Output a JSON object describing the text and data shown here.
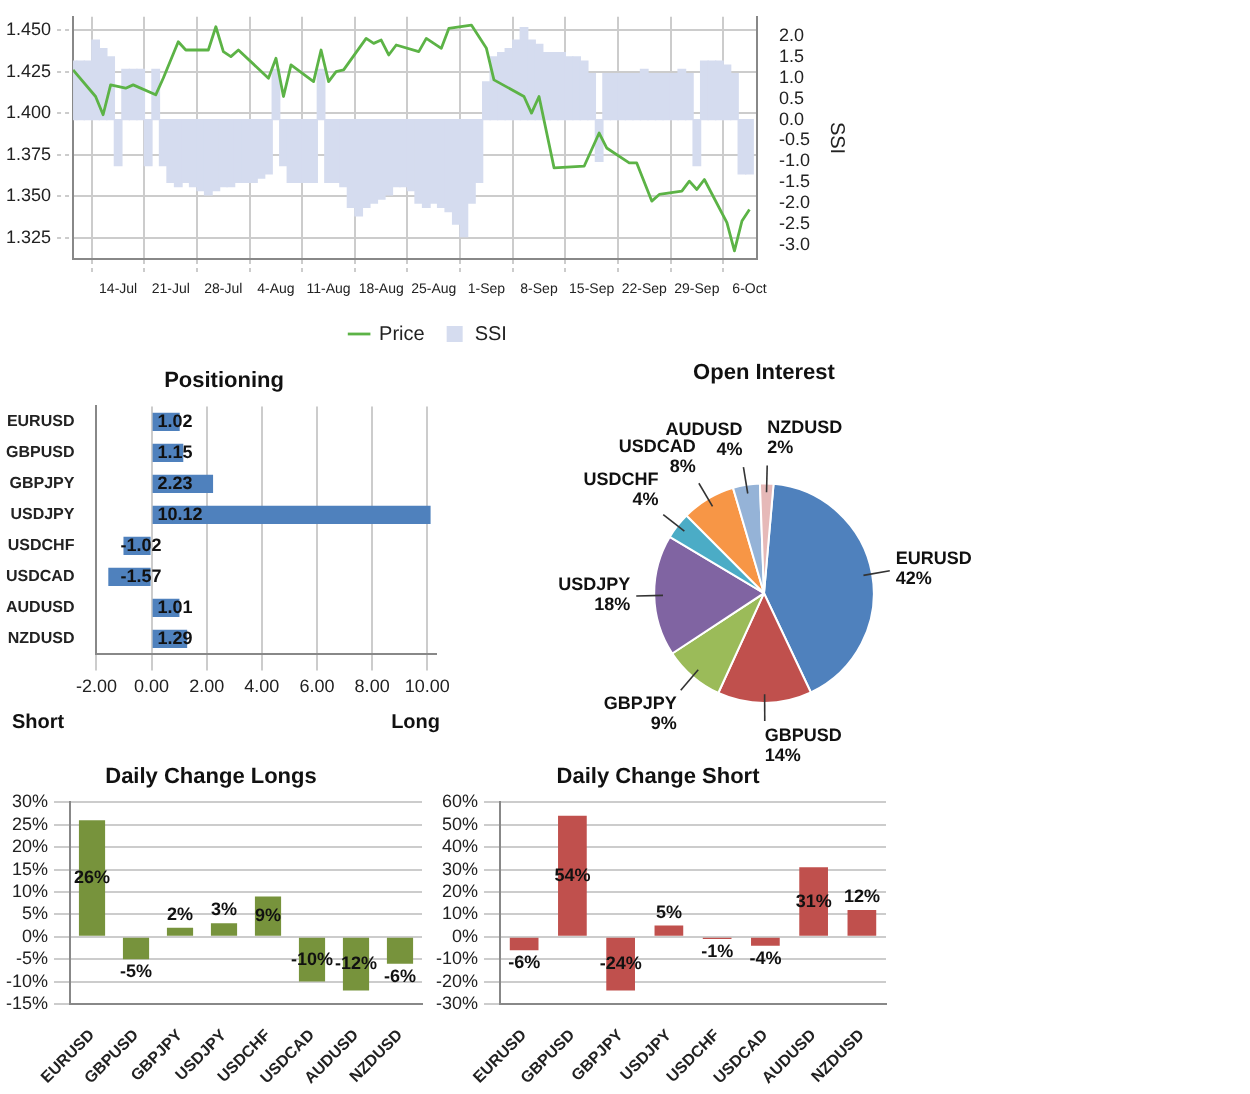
{
  "chart_data": [
    {
      "type": "line",
      "legend": "bottom",
      "grid": true,
      "y2label": "SSI",
      "xlim": [
        "--07-08",
        "--10-07"
      ],
      "xticks": [
        {
          "value": "--07-14",
          "label": "14-Jul"
        },
        {
          "value": "--07-21",
          "label": "21-Jul"
        },
        {
          "value": "--07-28",
          "label": "28-Jul"
        },
        {
          "value": "--08-04",
          "label": "4-Aug"
        },
        {
          "value": "--08-11",
          "label": "11-Aug"
        },
        {
          "value": "--08-18",
          "label": "18-Aug"
        },
        {
          "value": "--08-25",
          "label": "25-Aug"
        },
        {
          "value": "--09-01",
          "label": "1-Sep"
        },
        {
          "value": "--09-08",
          "label": "8-Sep"
        },
        {
          "value": "--09-15",
          "label": "15-Sep"
        },
        {
          "value": "--09-22",
          "label": "22-Sep"
        },
        {
          "value": "--09-29",
          "label": "29-Sep"
        },
        {
          "value": "--10-06",
          "label": "6-Oct"
        }
      ],
      "ylim": [
        1.312,
        1.458
      ],
      "yticks": [
        {
          "value": 1.325,
          "label": "1.325"
        },
        {
          "value": 1.35,
          "label": "1.350"
        },
        {
          "value": 1.375,
          "label": "1.375"
        },
        {
          "value": 1.4,
          "label": "1.400"
        },
        {
          "value": 1.425,
          "label": "1.425"
        },
        {
          "value": 1.45,
          "label": "1.450"
        }
      ],
      "y2lim": [
        -3.34,
        2.46
      ],
      "y2ticks": [
        {
          "value": -3,
          "label": "-3.0"
        },
        -2.5,
        {
          "value": -2,
          "label": "-2.0"
        },
        -1.5,
        {
          "value": -1,
          "label": "-1.0"
        },
        -0.5,
        {
          "value": 0,
          "label": "0.0"
        },
        0.5,
        {
          "value": 1,
          "label": "1.0"
        },
        1.5,
        {
          "value": 2,
          "label": "2.0"
        }
      ],
      "series": [
        {
          "name": "SSI",
          "type": "bar",
          "axis": "y2",
          "color": "#d5dcef",
          "x": [
            "--07-08",
            "--07-09",
            "--07-10",
            "--07-11",
            "--07-12",
            "--07-13",
            "--07-14",
            "--07-15",
            "--07-16",
            "--07-17",
            "--07-18",
            "--07-19",
            "--07-20",
            "--07-21",
            "--07-22",
            "--07-23",
            "--07-24",
            "--07-25",
            "--07-26",
            "--07-27",
            "--07-28",
            "--07-29",
            "--07-30",
            "--07-31",
            "--08-01",
            "--08-02",
            "--08-03",
            "--08-04",
            "--08-05",
            "--08-06",
            "--08-07",
            "--08-08",
            "--08-09",
            "--08-10",
            "--08-11",
            "--08-12",
            "--08-13",
            "--08-14",
            "--08-15",
            "--08-16",
            "--08-17",
            "--08-18",
            "--08-19",
            "--08-20",
            "--08-21",
            "--08-22",
            "--08-23",
            "--08-24",
            "--08-25",
            "--08-26",
            "--08-27",
            "--08-28",
            "--08-29",
            "--08-30",
            "--08-31",
            "--09-01",
            "--09-02",
            "--09-03",
            "--09-04",
            "--09-05",
            "--09-06",
            "--09-07",
            "--09-08",
            "--09-09",
            "--09-10",
            "--09-11",
            "--09-12",
            "--09-13",
            "--09-14",
            "--09-15",
            "--09-16",
            "--09-17",
            "--09-18",
            "--09-19",
            "--09-20",
            "--09-21",
            "--09-22",
            "--09-23",
            "--09-24",
            "--09-25",
            "--09-26",
            "--09-27",
            "--09-28",
            "--09-29",
            "--09-30",
            "--10-01",
            "--10-02",
            "--10-03",
            "--10-04",
            "--10-05",
            "--10-06"
          ],
          "values": [
            1.4,
            1.4,
            1.4,
            1.9,
            1.7,
            1.5,
            -1.1,
            1.2,
            1.2,
            1.2,
            -1.1,
            1.2,
            -1.1,
            -1.5,
            -1.6,
            -1.5,
            -1.6,
            -1.7,
            -1.8,
            -1.7,
            -1.6,
            -1.6,
            -1.5,
            -1.5,
            -1.5,
            -1.4,
            -1.3,
            1.2,
            -1.1,
            -1.5,
            -1.5,
            -1.5,
            -1.5,
            1.2,
            -1.5,
            -1.5,
            -1.6,
            -2.1,
            -2.3,
            -2.1,
            -2.0,
            -1.9,
            -1.8,
            -1.6,
            -1.6,
            -1.7,
            -2.0,
            -2.1,
            -2.0,
            -2.1,
            -2.2,
            -2.5,
            -2.8,
            -2.0,
            -1.5,
            0.9,
            1.5,
            1.6,
            1.7,
            1.9,
            2.2,
            1.9,
            1.8,
            1.6,
            1.6,
            1.6,
            1.5,
            1.5,
            1.4,
            1.1,
            -1.0,
            1.1,
            1.1,
            1.1,
            1.1,
            1.1,
            1.2,
            1.1,
            1.1,
            1.1,
            1.1,
            1.2,
            1.1,
            -1.1,
            1.4,
            1.4,
            1.4,
            1.3,
            1.1,
            -1.3,
            -1.3
          ]
        },
        {
          "name": "Price",
          "type": "line",
          "color": "#5cb346",
          "x": [
            "--07-08",
            "--07-11",
            "--07-12",
            "--07-13",
            "--07-15",
            "--07-16",
            "--07-19",
            "--07-20",
            "--07-22",
            "--07-23",
            "--07-26",
            "--07-27",
            "--07-28",
            "--07-29",
            "--07-30",
            "--08-03",
            "--08-04",
            "--08-05",
            "--08-06",
            "--08-09",
            "--08-10",
            "--08-11",
            "--08-12",
            "--08-13",
            "--08-16",
            "--08-17",
            "--08-18",
            "--08-19",
            "--08-20",
            "--08-23",
            "--08-24",
            "--08-26",
            "--08-27",
            "--08-30",
            "--09-01",
            "--09-02",
            "--09-06",
            "--09-07",
            "--09-08",
            "--09-10",
            "--09-14",
            "--09-16",
            "--09-17",
            "--09-20",
            "--09-21",
            "--09-23",
            "--09-24",
            "--09-27",
            "--09-28",
            "--09-29",
            "--09-30",
            "--10-03",
            "--10-04",
            "--10-05",
            "--10-06"
          ],
          "values": [
            1.426,
            1.41,
            1.399,
            1.417,
            1.415,
            1.417,
            1.411,
            1.421,
            1.443,
            1.438,
            1.438,
            1.452,
            1.437,
            1.434,
            1.438,
            1.421,
            1.433,
            1.41,
            1.429,
            1.419,
            1.438,
            1.419,
            1.425,
            1.426,
            1.445,
            1.442,
            1.444,
            1.435,
            1.441,
            1.437,
            1.445,
            1.439,
            1.451,
            1.453,
            1.439,
            1.42,
            1.41,
            1.4,
            1.41,
            1.367,
            1.368,
            1.388,
            1.379,
            1.37,
            1.37,
            1.347,
            1.351,
            1.353,
            1.359,
            1.354,
            1.36,
            1.334,
            1.317,
            1.335,
            1.342
          ]
        }
      ]
    },
    {
      "type": "bar",
      "orientation": "horizontal",
      "title": "Positioning",
      "categories": [
        "EURUSD",
        "GBPUSD",
        "GBPJPY",
        "USDJPY",
        "USDCHF",
        "USDCAD",
        "AUDUSD",
        "NZDUSD"
      ],
      "values": [
        1.02,
        1.15,
        2.23,
        10.12,
        -1.02,
        -1.57,
        1.01,
        1.29
      ],
      "color": "#4f81bd",
      "xlim": [
        -2,
        10.3
      ],
      "xticks": [
        {
          "value": -2,
          "label": "-2.00"
        },
        {
          "value": 0,
          "label": "0.00"
        },
        {
          "value": 2,
          "label": "2.00"
        },
        {
          "value": 4,
          "label": "4.00"
        },
        {
          "value": 6,
          "label": "6.00"
        },
        {
          "value": 8,
          "label": "8.00"
        },
        {
          "value": 10,
          "label": "10.00"
        }
      ],
      "grid": "x",
      "data_labels": true,
      "annotations": [
        "Short",
        "Long"
      ]
    },
    {
      "type": "pie",
      "title": "Open Interest",
      "categories": [
        "EURUSD",
        "GBPUSD",
        "GBPJPY",
        "USDJPY",
        "USDCHF",
        "USDCAD",
        "AUDUSD",
        "NZDUSD"
      ],
      "values": [
        42,
        14,
        9,
        18,
        4,
        8,
        4,
        2
      ],
      "value_labels": [
        "42%",
        "14%",
        "9%",
        "18%",
        "4%",
        "8%",
        "4%",
        "2%"
      ],
      "colors": [
        "#4f81bd",
        "#c0504d",
        "#9bbb59",
        "#8064a2",
        "#4bacc6",
        "#f79646",
        "#95b3d7",
        "#e6b9b8"
      ]
    },
    {
      "type": "bar",
      "title": "Daily Change Longs",
      "categories": [
        "EURUSD",
        "GBPUSD",
        "GBPJPY",
        "USDJPY",
        "USDCHF",
        "USDCAD",
        "AUDUSD",
        "NZDUSD"
      ],
      "values": [
        26,
        -5,
        2,
        3,
        9,
        -10,
        -12,
        -6
      ],
      "value_labels": [
        "26%",
        "-5%",
        "2%",
        "3%",
        "9%",
        "-10%",
        "-12%",
        "-6%"
      ],
      "color": "#77933c",
      "ylim": [
        -15,
        30
      ],
      "yticks": [
        {
          "value": -15,
          "label": "-15%"
        },
        {
          "value": -10,
          "label": "-10%"
        },
        {
          "value": -5,
          "label": "-5%"
        },
        {
          "value": 0,
          "label": "0%"
        },
        {
          "value": 5,
          "label": "5%"
        },
        {
          "value": 10,
          "label": "10%"
        },
        {
          "value": 15,
          "label": "15%"
        },
        {
          "value": 20,
          "label": "20%"
        },
        {
          "value": 25,
          "label": "25%"
        },
        {
          "value": 30,
          "label": "30%"
        }
      ],
      "grid": "y"
    },
    {
      "type": "bar",
      "title": "Daily Change Short",
      "categories": [
        "EURUSD",
        "GBPUSD",
        "GBPJPY",
        "USDJPY",
        "USDCHF",
        "USDCAD",
        "AUDUSD",
        "NZDUSD"
      ],
      "values": [
        -6,
        54,
        -24,
        5,
        -1,
        -4,
        31,
        12
      ],
      "value_labels": [
        "-6%",
        "54%",
        "-24%",
        "5%",
        "-1%",
        "-4%",
        "31%",
        "12%"
      ],
      "color": "#c0504d",
      "ylim": [
        -30,
        60
      ],
      "yticks": [
        {
          "value": -30,
          "label": "-30%"
        },
        {
          "value": -20,
          "label": "-20%"
        },
        {
          "value": -10,
          "label": "-10%"
        },
        {
          "value": 0,
          "label": "0%"
        },
        {
          "value": 10,
          "label": "10%"
        },
        {
          "value": 20,
          "label": "20%"
        },
        {
          "value": 30,
          "label": "30%"
        },
        {
          "value": 40,
          "label": "40%"
        },
        {
          "value": 50,
          "label": "50%"
        },
        {
          "value": 60,
          "label": "60%"
        }
      ],
      "grid": "y"
    }
  ]
}
